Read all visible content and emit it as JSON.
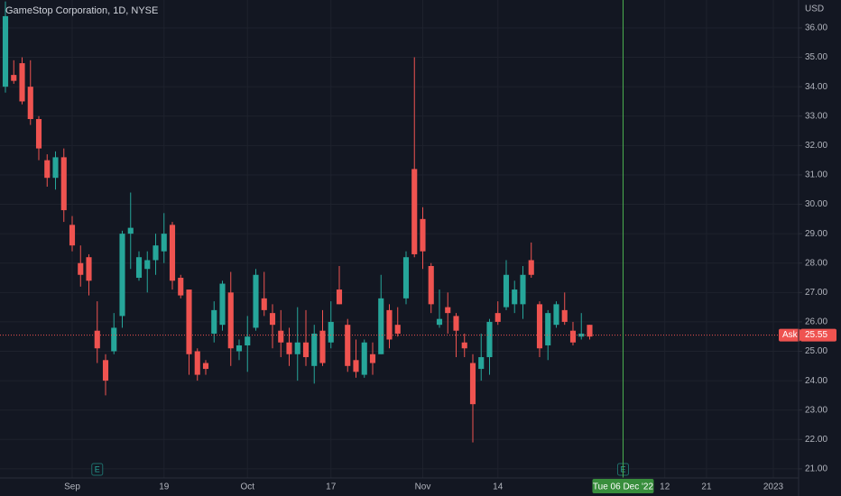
{
  "chart_data": {
    "type": "candlestick",
    "title": "GameStop Corporation, 1D, NYSE",
    "currency": "USD",
    "up_color": "#26a69a",
    "down_color": "#ef5350",
    "grid": true,
    "open": [
      34.0,
      34.4,
      34.8,
      34.0,
      32.9,
      31.5,
      30.9,
      31.6,
      29.3,
      28.0,
      28.2,
      25.7,
      24.7,
      25.0,
      26.2,
      29.0,
      27.5,
      27.8,
      28.1,
      28.4,
      29.3,
      27.5,
      27.1,
      25.0,
      24.6,
      25.6,
      25.9,
      27.0,
      25.0,
      25.2,
      25.8,
      26.8,
      26.3,
      25.7,
      25.3,
      24.9,
      25.3,
      24.5,
      25.7,
      25.3,
      27.1,
      25.9,
      24.7,
      24.2,
      24.9,
      24.9,
      26.4,
      25.9,
      26.8,
      31.2,
      29.5,
      27.9,
      25.9,
      26.5,
      26.2,
      25.3,
      24.6,
      24.4,
      24.8,
      26.3,
      26.5,
      26.6,
      26.6,
      28.1,
      26.6,
      25.2,
      25.9,
      26.4,
      25.7,
      25.5,
      25.9
    ],
    "high": [
      36.9,
      34.9,
      35.0,
      34.9,
      33.0,
      31.7,
      31.8,
      31.9,
      29.6,
      28.6,
      28.3,
      26.7,
      24.9,
      26.3,
      29.1,
      30.4,
      28.4,
      28.4,
      29.0,
      29.7,
      29.4,
      27.6,
      27.1,
      25.1,
      24.7,
      26.7,
      27.4,
      27.7,
      25.4,
      26.2,
      27.8,
      27.7,
      26.6,
      26.4,
      25.8,
      26.5,
      26.4,
      25.9,
      26.4,
      26.7,
      27.9,
      26.1,
      25.4,
      25.4,
      25.3,
      27.6,
      26.6,
      26.5,
      28.4,
      35.0,
      29.9,
      28.0,
      27.1,
      27.0,
      26.3,
      25.6,
      24.9,
      25.6,
      26.1,
      26.7,
      28.1,
      27.4,
      27.9,
      28.7,
      26.7,
      26.4,
      26.7,
      27.0,
      26.0,
      26.3,
      25.9
    ],
    "low": [
      33.8,
      34.1,
      33.4,
      32.7,
      31.5,
      30.6,
      30.5,
      29.4,
      28.4,
      27.2,
      26.9,
      24.6,
      23.5,
      24.9,
      25.8,
      27.8,
      27.4,
      27.0,
      27.6,
      28.0,
      27.1,
      26.8,
      24.2,
      24.0,
      24.2,
      25.3,
      25.7,
      24.5,
      24.7,
      24.3,
      25.7,
      26.2,
      25.1,
      24.8,
      24.5,
      24.0,
      24.5,
      23.9,
      24.5,
      25.1,
      26.6,
      24.3,
      24.1,
      24.1,
      24.2,
      24.9,
      25.1,
      25.5,
      26.6,
      28.2,
      27.8,
      26.3,
      25.8,
      25.6,
      24.8,
      24.8,
      21.9,
      24.0,
      24.2,
      25.9,
      26.4,
      26.3,
      26.1,
      27.5,
      24.8,
      24.7,
      25.8,
      25.9,
      25.2,
      25.4,
      25.4
    ],
    "close": [
      36.4,
      34.2,
      33.5,
      32.9,
      31.9,
      30.9,
      31.6,
      29.8,
      28.6,
      27.6,
      27.4,
      25.1,
      24.0,
      25.8,
      29.0,
      29.2,
      28.2,
      28.1,
      28.6,
      29.0,
      27.4,
      26.9,
      24.9,
      24.2,
      24.4,
      26.4,
      27.3,
      25.1,
      25.2,
      25.5,
      27.6,
      26.4,
      25.9,
      25.3,
      24.9,
      25.3,
      24.8,
      25.6,
      24.6,
      26.0,
      26.6,
      24.5,
      24.3,
      25.3,
      24.6,
      26.8,
      25.4,
      25.6,
      28.2,
      28.3,
      28.4,
      26.6,
      26.1,
      26.3,
      25.7,
      25.1,
      23.2,
      24.8,
      26.0,
      26.0,
      27.6,
      27.1,
      27.6,
      27.6,
      25.1,
      26.3,
      26.6,
      26.0,
      25.3,
      25.6,
      25.5
    ],
    "xlim": [
      -0.65,
      95.03
    ],
    "ylim": [
      20.69,
      36.95
    ],
    "yticks": [
      {
        "value": 21,
        "label": "21.00"
      },
      {
        "value": 22,
        "label": "22.00"
      },
      {
        "value": 23,
        "label": "23.00"
      },
      {
        "value": 24,
        "label": "24.00"
      },
      {
        "value": 25,
        "label": "25.00"
      },
      {
        "value": 26,
        "label": "26.00"
      },
      {
        "value": 27,
        "label": "27.00"
      },
      {
        "value": 28,
        "label": "28.00"
      },
      {
        "value": 29,
        "label": "29.00"
      },
      {
        "value": 30,
        "label": "30.00"
      },
      {
        "value": 31,
        "label": "31.00"
      },
      {
        "value": 32,
        "label": "32.00"
      },
      {
        "value": 33,
        "label": "33.00"
      },
      {
        "value": 34,
        "label": "34.00"
      },
      {
        "value": 35,
        "label": "35.00"
      },
      {
        "value": 36,
        "label": "36.00"
      }
    ],
    "xticks": [
      {
        "value": 8,
        "label": "Sep"
      },
      {
        "value": 19,
        "label": "19"
      },
      {
        "value": 29,
        "label": "Oct"
      },
      {
        "value": 39,
        "label": "17"
      },
      {
        "value": 50,
        "label": "Nov"
      },
      {
        "value": 59,
        "label": "14"
      },
      {
        "value": 79,
        "label": "12"
      },
      {
        "value": 84,
        "label": "21"
      },
      {
        "value": 92,
        "label": "2023"
      }
    ],
    "ask": {
      "label": "Ask",
      "value": 25.55
    },
    "crosshair": {
      "x": 74,
      "label": "Tue 06 Dec '22"
    },
    "events": [
      {
        "x": 11,
        "label": "E"
      },
      {
        "x": 74,
        "label": "E"
      }
    ]
  }
}
